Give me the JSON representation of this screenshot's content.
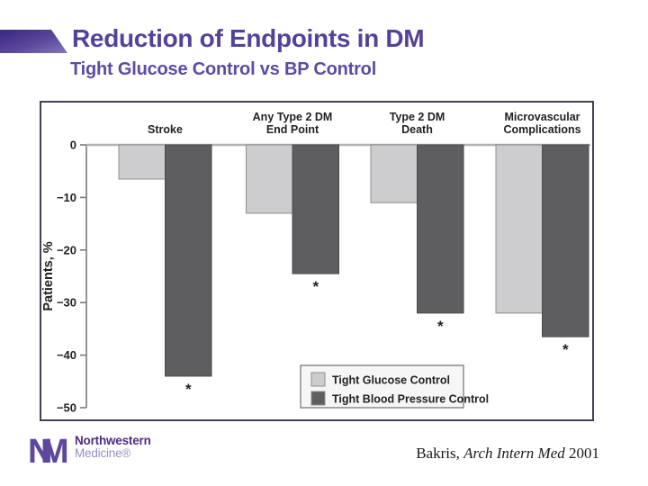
{
  "slide": {
    "title": "Reduction of Endpoints in DM",
    "subtitle": "Tight Glucose Control vs BP Control",
    "title_color": "#54429a",
    "accent_color_dark": "#3e2d85",
    "accent_color_light": "#8678b8"
  },
  "chart_data": {
    "type": "bar",
    "title": "",
    "xlabel": "",
    "ylabel": "Patients, %",
    "ylim": [
      -50,
      0
    ],
    "grid": false,
    "categories": [
      "Stroke",
      "Any Type 2 DM End Point",
      "Type 2 DM Death",
      "Microvascular Complications"
    ],
    "category_lines": [
      [
        "Stroke"
      ],
      [
        "Any Type 2 DM",
        "End Point"
      ],
      [
        "Type 2 DM",
        "Death"
      ],
      [
        "Microvascular",
        "Complications"
      ]
    ],
    "series": [
      {
        "name": "Tight Glucose Control",
        "color": "#cdcdcf",
        "border": "#8f8f8f",
        "values": [
          -6.5,
          -13,
          -11,
          -32
        ],
        "significant": [
          false,
          false,
          false,
          false
        ]
      },
      {
        "name": "Tight Blood Pressure Control",
        "color": "#5e5e61",
        "border": "#4a4a4d",
        "values": [
          -44,
          -24.5,
          -32,
          -36.5
        ],
        "significant": [
          true,
          true,
          true,
          true
        ]
      }
    ],
    "yticks": [
      {
        "v": 0,
        "label": "0"
      },
      {
        "v": -10,
        "label": "−10"
      },
      {
        "v": -20,
        "label": "−20"
      },
      {
        "v": -30,
        "label": "−30"
      },
      {
        "v": -40,
        "label": "−40"
      },
      {
        "v": -50,
        "label": "−50"
      }
    ],
    "significance_symbol": "*",
    "legend_position": "bottom-right"
  },
  "footer": {
    "logo": {
      "monogram_n": "N",
      "monogram_m": "M",
      "name_line1": "Northwestern",
      "name_line2": "Medicine®",
      "brand_dark": "#4E2A84",
      "brand_mid": "#5c489e",
      "brand_light": "#9a8fc0"
    },
    "citation": {
      "author": "Bakris, ",
      "journal": "Arch Intern Med",
      "year": " 2001"
    }
  }
}
